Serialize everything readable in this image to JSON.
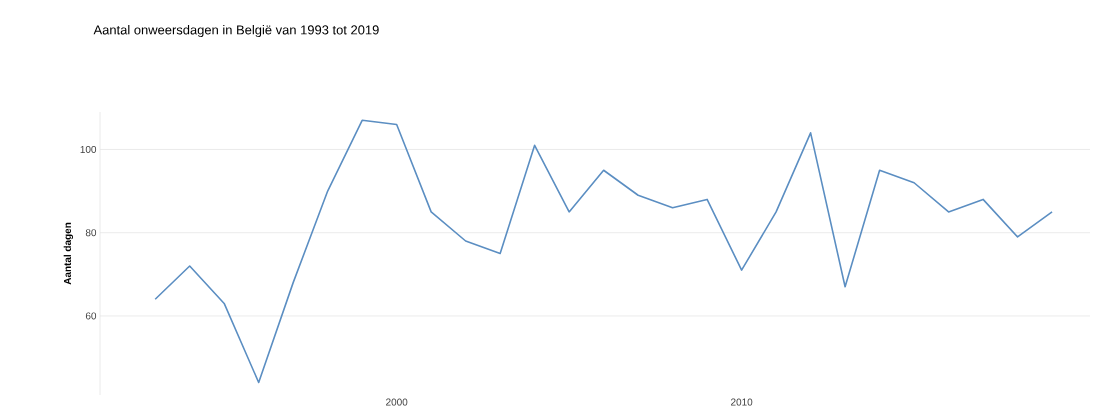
{
  "chart_data": {
    "type": "line",
    "title": "Aantal onweersdagen in België van 1993 tot 2019",
    "ylabel": "Aantal dagen",
    "x": [
      1993,
      1994,
      1995,
      1996,
      1997,
      1998,
      1999,
      2000,
      2001,
      2002,
      2003,
      2004,
      2005,
      2006,
      2007,
      2008,
      2009,
      2010,
      2011,
      2012,
      2013,
      2014,
      2015,
      2016,
      2017,
      2018,
      2019
    ],
    "values": [
      64,
      72,
      63,
      44,
      68,
      90,
      107,
      106,
      85,
      78,
      75,
      101,
      85,
      95,
      89,
      86,
      88,
      71,
      85,
      104,
      67,
      95,
      92,
      85,
      88,
      79,
      85
    ],
    "color": "#5b8ec2",
    "xlim": [
      1991.4,
      2020.1
    ],
    "ylim": [
      41,
      109
    ],
    "xticks": [
      2000,
      2010
    ],
    "yticks": [
      60,
      80,
      100
    ],
    "grid": "y",
    "line_style": "solid"
  }
}
